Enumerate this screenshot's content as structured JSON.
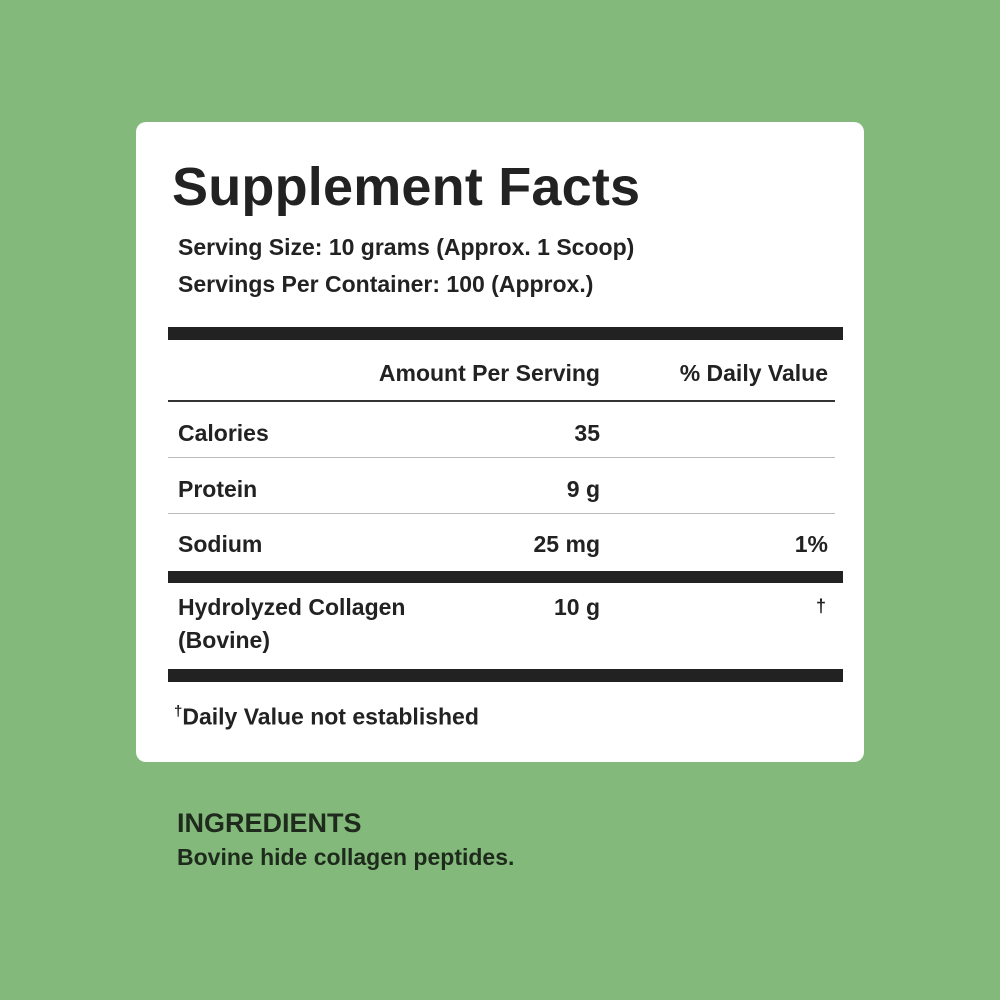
{
  "label": {
    "title": "Supplement Facts",
    "serving_size": "Serving Size: 10 grams (Approx. 1 Scoop)",
    "servings_per_container": "Servings Per Container: 100 (Approx.)",
    "header": {
      "amount": "Amount Per Serving",
      "daily_value": "% Daily Value"
    },
    "rows": [
      {
        "name": "Calories",
        "amount": "35",
        "dv": ""
      },
      {
        "name": "Protein",
        "amount": "9 g",
        "dv": ""
      },
      {
        "name": "Sodium",
        "amount": "25 mg",
        "dv": "1%"
      }
    ],
    "collagen": {
      "name_line1": "Hydrolyzed Collagen",
      "name_line2": "(Bovine)",
      "amount": "10 g",
      "dv": "†"
    },
    "footnote_mark": "†",
    "footnote": "Daily Value not established"
  },
  "ingredients": {
    "heading": "INGREDIENTS",
    "text": "Bovine hide collagen peptides."
  },
  "colors": {
    "background": "#83ba7b",
    "card": "#ffffff",
    "text": "#222222"
  }
}
